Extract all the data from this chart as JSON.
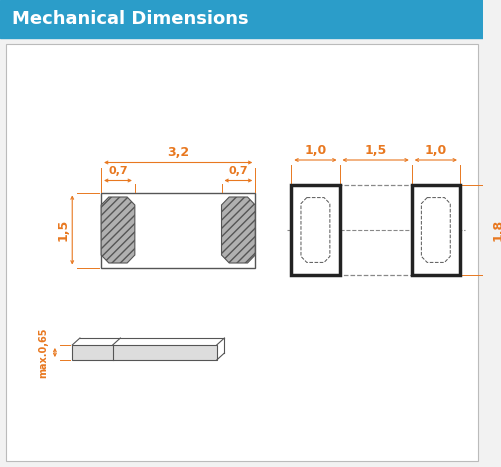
{
  "title": "Mechanical Dimensions",
  "title_bg": "#2b9dc9",
  "title_fg": "#ffffff",
  "bg_color": "#f2f2f2",
  "line_color": "#555555",
  "dim_color": "#e87820",
  "border_color": "#bbbbbb",
  "fig_w": 5.02,
  "fig_h": 4.67,
  "dpi": 100
}
